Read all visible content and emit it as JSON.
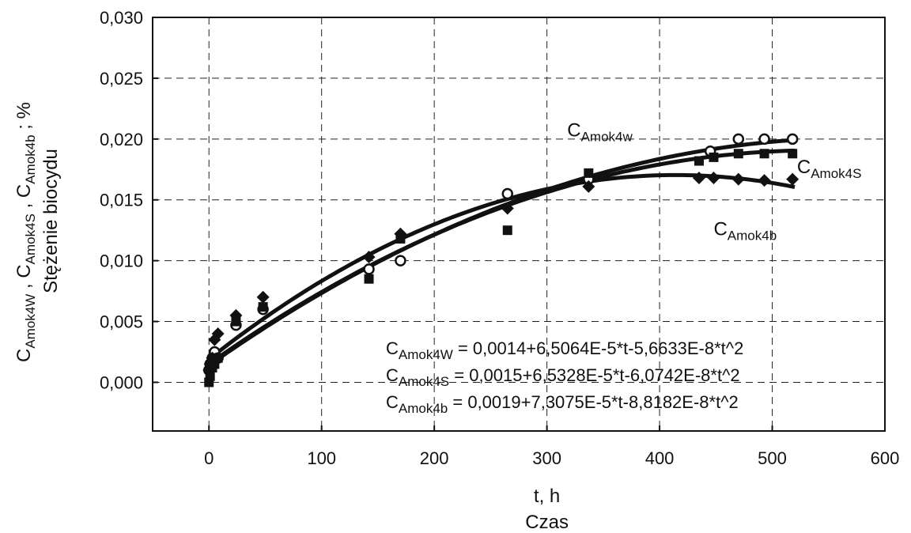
{
  "chart_data": {
    "type": "scatter",
    "xlabel": "t, h",
    "xlabel2": "Czas",
    "ylabel": {
      "symbols": [
        {
          "main": "C",
          "sub": "Amok4W"
        },
        {
          "main": "C",
          "sub": "Amok4S"
        },
        {
          "main": "C",
          "sub": "Amok4b"
        }
      ],
      "unit": "; %",
      "line2": "Stężenie biocydu"
    },
    "xlim": [
      -50,
      600
    ],
    "ylim": [
      -0.004,
      0.03
    ],
    "x_ticks": [
      0,
      100,
      200,
      300,
      400,
      500,
      600
    ],
    "x_tick_labels": [
      "0",
      "100",
      "200",
      "300",
      "400",
      "500",
      "600"
    ],
    "y_ticks": [
      0.0,
      0.005,
      0.01,
      0.015,
      0.02,
      0.025,
      0.03
    ],
    "y_tick_labels": [
      "0,000",
      "0,005",
      "0,010",
      "0,015",
      "0,020",
      "0,025",
      "0,030"
    ],
    "grid": true,
    "series": [
      {
        "name": "C_Amok4W",
        "marker": "circle-open",
        "x": [
          0,
          1,
          3,
          5,
          8,
          24,
          48,
          142,
          170,
          265,
          337,
          445,
          470,
          493,
          518
        ],
        "y": [
          0.001,
          0.0015,
          0.002,
          0.0025,
          0.002,
          0.0047,
          0.006,
          0.0093,
          0.01,
          0.0155,
          0.0167,
          0.019,
          0.02,
          0.02,
          0.02
        ],
        "fit": {
          "a0": 0.0014,
          "a1": 6.5064e-05,
          "a2": -5.6633e-08,
          "t_max": 520
        }
      },
      {
        "name": "C_Amok4S",
        "marker": "diamond-filled",
        "x": [
          0,
          1,
          3,
          5,
          8,
          24,
          48,
          142,
          170,
          265,
          337,
          435,
          448,
          470,
          493,
          518
        ],
        "y": [
          0.001,
          0.0015,
          0.002,
          0.0035,
          0.004,
          0.0055,
          0.007,
          0.0103,
          0.0122,
          0.0143,
          0.0161,
          0.0168,
          0.0168,
          0.0167,
          0.0166,
          0.0167
        ],
        "fit": {
          "a0": 0.0015,
          "a1": 6.5328e-05,
          "a2": -6.0742e-08,
          "t_max": 520
        }
      },
      {
        "name": "C_Amok4b",
        "marker": "square-filled",
        "x": [
          0,
          1,
          3,
          5,
          8,
          24,
          48,
          142,
          170,
          265,
          337,
          435,
          448,
          470,
          493,
          518
        ],
        "y": [
          0.0,
          0.0005,
          0.0012,
          0.0015,
          0.002,
          0.005,
          0.0062,
          0.0085,
          0.0118,
          0.0125,
          0.0172,
          0.0182,
          0.0185,
          0.0188,
          0.0188,
          0.0188
        ],
        "fit": {
          "a0": 0.0019,
          "a1": 7.3075e-05,
          "a2": -8.8182e-08,
          "t_max": 520
        }
      }
    ],
    "curve_labels": [
      {
        "main": "C",
        "sub": "Amok4w",
        "x": 318,
        "y": 0.0202
      },
      {
        "main": "C",
        "sub": "Amok4S",
        "x": 522,
        "y": 0.0172
      },
      {
        "main": "C",
        "sub": "Amok4b",
        "x": 448,
        "y": 0.0121
      }
    ],
    "equations": [
      {
        "main": "C",
        "sub": "Amok4W",
        "text": " = 0,0014+6,5064E-5*t-5,6633E-8*t^2"
      },
      {
        "main": "C",
        "sub": "Amok4S",
        "text": " = 0,0015+6,5328E-5*t-6,0742E-8*t^2"
      },
      {
        "main": "C",
        "sub": "Amok4b",
        "text": " = 0,0019+7,3075E-5*t-8,8182E-8*t^2"
      }
    ]
  }
}
